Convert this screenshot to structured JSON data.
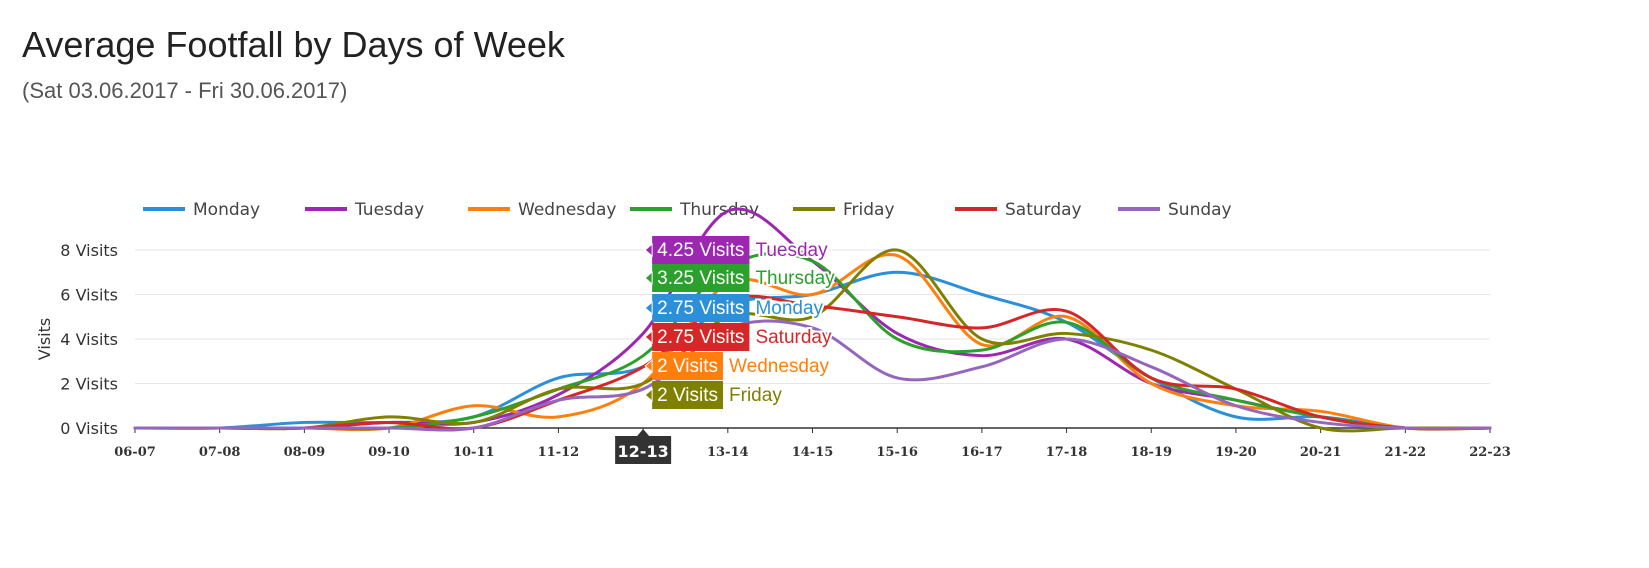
{
  "header": {
    "title": "Average Footfall by Days of Week",
    "subtitle": "(Sat 03.06.2017 - Fri 30.06.2017)"
  },
  "chart_data": {
    "type": "line",
    "title": "Average Footfall by Days of Week",
    "subtitle": "(Sat 03.06.2017 - Fri 30.06.2017)",
    "xlabel": "",
    "ylabel": "Visits",
    "categories": [
      "06-07",
      "07-08",
      "08-09",
      "09-10",
      "10-11",
      "11-12",
      "12-13",
      "13-14",
      "14-15",
      "15-16",
      "16-17",
      "17-18",
      "18-19",
      "19-20",
      "20-21",
      "21-22",
      "22-23"
    ],
    "ylim": [
      0,
      8
    ],
    "yticks": [
      {
        "value": 0,
        "label": "0 Visits"
      },
      {
        "value": 2,
        "label": "2 Visits"
      },
      {
        "value": 4,
        "label": "4 Visits"
      },
      {
        "value": 6,
        "label": "6 Visits"
      },
      {
        "value": 8,
        "label": "8 Visits"
      }
    ],
    "grid": true,
    "legend_position": "top",
    "series": [
      {
        "name": "Monday",
        "color": "#2b90d9",
        "values": [
          0,
          0,
          0.25,
          0.25,
          0.5,
          2.25,
          2.75,
          5.5,
          6,
          7,
          6,
          4.75,
          2.25,
          0.5,
          0.5,
          0,
          0
        ]
      },
      {
        "name": "Tuesday",
        "color": "#9c27b0",
        "values": [
          0,
          0,
          0,
          0.25,
          0.25,
          1.5,
          4.25,
          9.75,
          7.5,
          4.25,
          3.25,
          4,
          2,
          1.25,
          0.5,
          0,
          0
        ]
      },
      {
        "name": "Wednesday",
        "color": "#ff7f0e",
        "values": [
          0,
          0,
          0,
          0,
          1,
          0.5,
          2,
          6.5,
          6,
          7.75,
          3.75,
          5,
          2,
          1,
          0.75,
          0,
          0
        ]
      },
      {
        "name": "Thursday",
        "color": "#2ca02c",
        "values": [
          0,
          0,
          0,
          0,
          0.5,
          1.75,
          3.25,
          7.25,
          7.5,
          4,
          3.5,
          4.75,
          2.25,
          1.25,
          0.5,
          0,
          0
        ]
      },
      {
        "name": "Friday",
        "color": "#808000",
        "values": [
          0,
          0,
          0,
          0.5,
          0.25,
          1.75,
          2,
          5,
          5,
          8,
          4,
          4.25,
          3.5,
          1.75,
          0,
          0,
          0
        ]
      },
      {
        "name": "Saturday",
        "color": "#d62728",
        "values": [
          0,
          0,
          0,
          0.25,
          0,
          1.25,
          2.75,
          5.75,
          5.5,
          5,
          4.5,
          5.25,
          2.25,
          1.75,
          0.5,
          0,
          0
        ]
      },
      {
        "name": "Sunday",
        "color": "#9467bd",
        "values": [
          0,
          0,
          0,
          0,
          0,
          1.25,
          1.75,
          4.5,
          4.5,
          2.25,
          2.75,
          4,
          2.75,
          1,
          0.25,
          0,
          0
        ]
      }
    ],
    "tooltip": {
      "category": "12-13",
      "entries": [
        {
          "value_label": "4.25 Visits",
          "name": "Tuesday",
          "color": "#9c27b0"
        },
        {
          "value_label": "3.25 Visits",
          "name": "Thursday",
          "color": "#2ca02c"
        },
        {
          "value_label": "2.75 Visits",
          "name": "Monday",
          "color": "#2b90d9"
        },
        {
          "value_label": "2.75 Visits",
          "name": "Saturday",
          "color": "#d62728"
        },
        {
          "value_label": "2 Visits",
          "name": "Wednesday",
          "color": "#ff7f0e"
        },
        {
          "value_label": "2 Visits",
          "name": "Friday",
          "color": "#808000"
        }
      ]
    }
  }
}
